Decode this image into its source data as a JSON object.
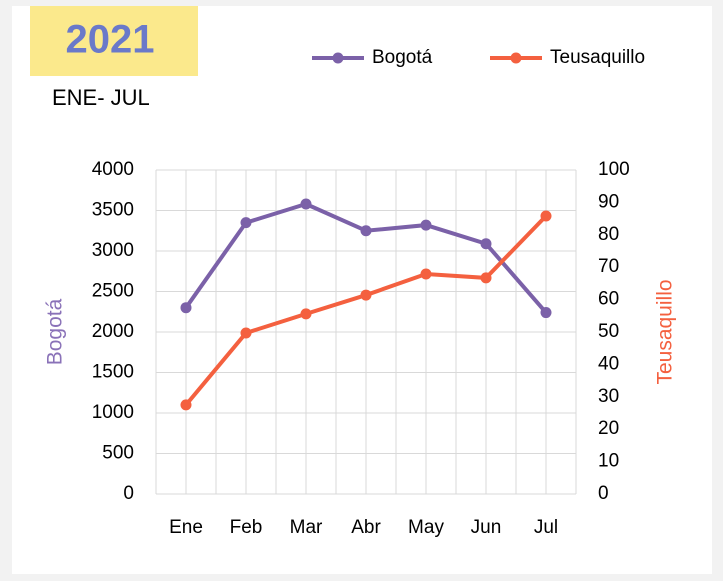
{
  "chart_data": {
    "type": "line",
    "title": "2021",
    "subtitle": "ENE- JUL",
    "categories": [
      "Ene",
      "Feb",
      "Mar",
      "Abr",
      "May",
      "Jun",
      "Jul"
    ],
    "series": [
      {
        "name": "Bogotá",
        "color": "#7b61a8",
        "values": [
          2300,
          3350,
          3580,
          3250,
          3320,
          3090,
          2240
        ]
      },
      {
        "name": "Teusaquillo",
        "color": "#f4603f",
        "axis": "y2",
        "values": [
          27.5,
          49.7,
          55.6,
          61.4,
          67.9,
          66.7,
          85.8
        ]
      }
    ],
    "ylabel": "Bogotá",
    "y2label": "Teusaquillo",
    "ylim": [
      0,
      4000
    ],
    "yticks": [
      0,
      500,
      1000,
      1500,
      2000,
      2500,
      3000,
      3500,
      4000
    ],
    "y2lim": [
      0,
      100
    ],
    "y2ticks": [
      0,
      10,
      20,
      30,
      40,
      50,
      60,
      70,
      80,
      90,
      100
    ],
    "grid": true,
    "legend": "top"
  }
}
